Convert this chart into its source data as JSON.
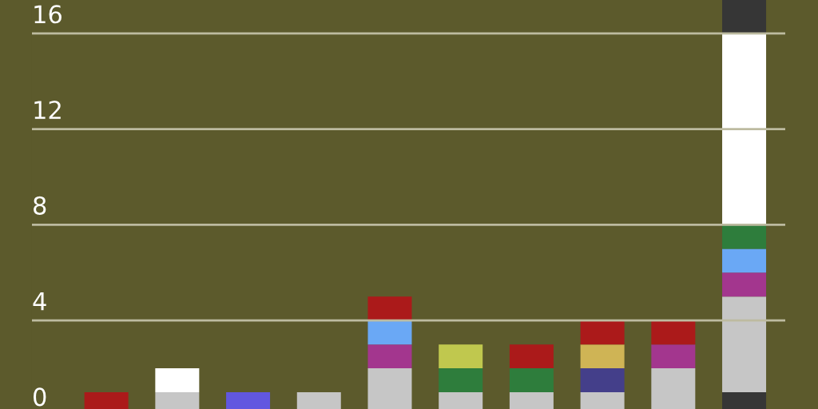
{
  "chart_data": {
    "type": "bar",
    "stacked": true,
    "categories": [
      null,
      null,
      null,
      null,
      null,
      null,
      null,
      null,
      null,
      null
    ],
    "ylim": [
      0,
      17.4
    ],
    "yticks": [
      0,
      4,
      8,
      12,
      16
    ],
    "grid": "y",
    "tick_labels": "y",
    "series": [
      {
        "color": "#363636",
        "values": [
          null,
          null,
          null,
          null,
          null,
          null,
          null,
          null,
          null,
          1
        ]
      },
      {
        "color": "#c6c6c6",
        "values": [
          null,
          1,
          null,
          1,
          2,
          1,
          1,
          1,
          2,
          4
        ]
      },
      {
        "color": "#443f8a",
        "values": [
          null,
          null,
          null,
          null,
          null,
          null,
          null,
          1,
          null,
          null
        ]
      },
      {
        "color": "#6157e0",
        "values": [
          null,
          null,
          1,
          null,
          null,
          null,
          null,
          null,
          null,
          null
        ]
      },
      {
        "color": "#a3368e",
        "values": [
          null,
          null,
          null,
          null,
          1,
          null,
          null,
          null,
          1,
          1
        ]
      },
      {
        "color": "#6aa8f5",
        "values": [
          null,
          null,
          null,
          null,
          1,
          null,
          null,
          null,
          null,
          1
        ]
      },
      {
        "color": "#2e7d3c",
        "values": [
          null,
          null,
          null,
          null,
          null,
          1,
          1,
          null,
          null,
          1
        ]
      },
      {
        "color": "#cfb455",
        "values": [
          null,
          null,
          null,
          null,
          null,
          null,
          null,
          1,
          null,
          null
        ]
      },
      {
        "color": "#c0c84e",
        "values": [
          null,
          null,
          null,
          null,
          null,
          1,
          null,
          null,
          null,
          null
        ]
      },
      {
        "color": "#ab1a1a",
        "values": [
          1,
          null,
          null,
          null,
          1,
          null,
          1,
          1,
          1,
          null
        ]
      },
      {
        "color": "#ffffff",
        "values": [
          null,
          1,
          null,
          null,
          null,
          null,
          null,
          null,
          null,
          8
        ]
      },
      {
        "color": "#363636",
        "values": [
          null,
          null,
          null,
          null,
          null,
          null,
          null,
          null,
          null,
          1.4
        ]
      }
    ]
  }
}
